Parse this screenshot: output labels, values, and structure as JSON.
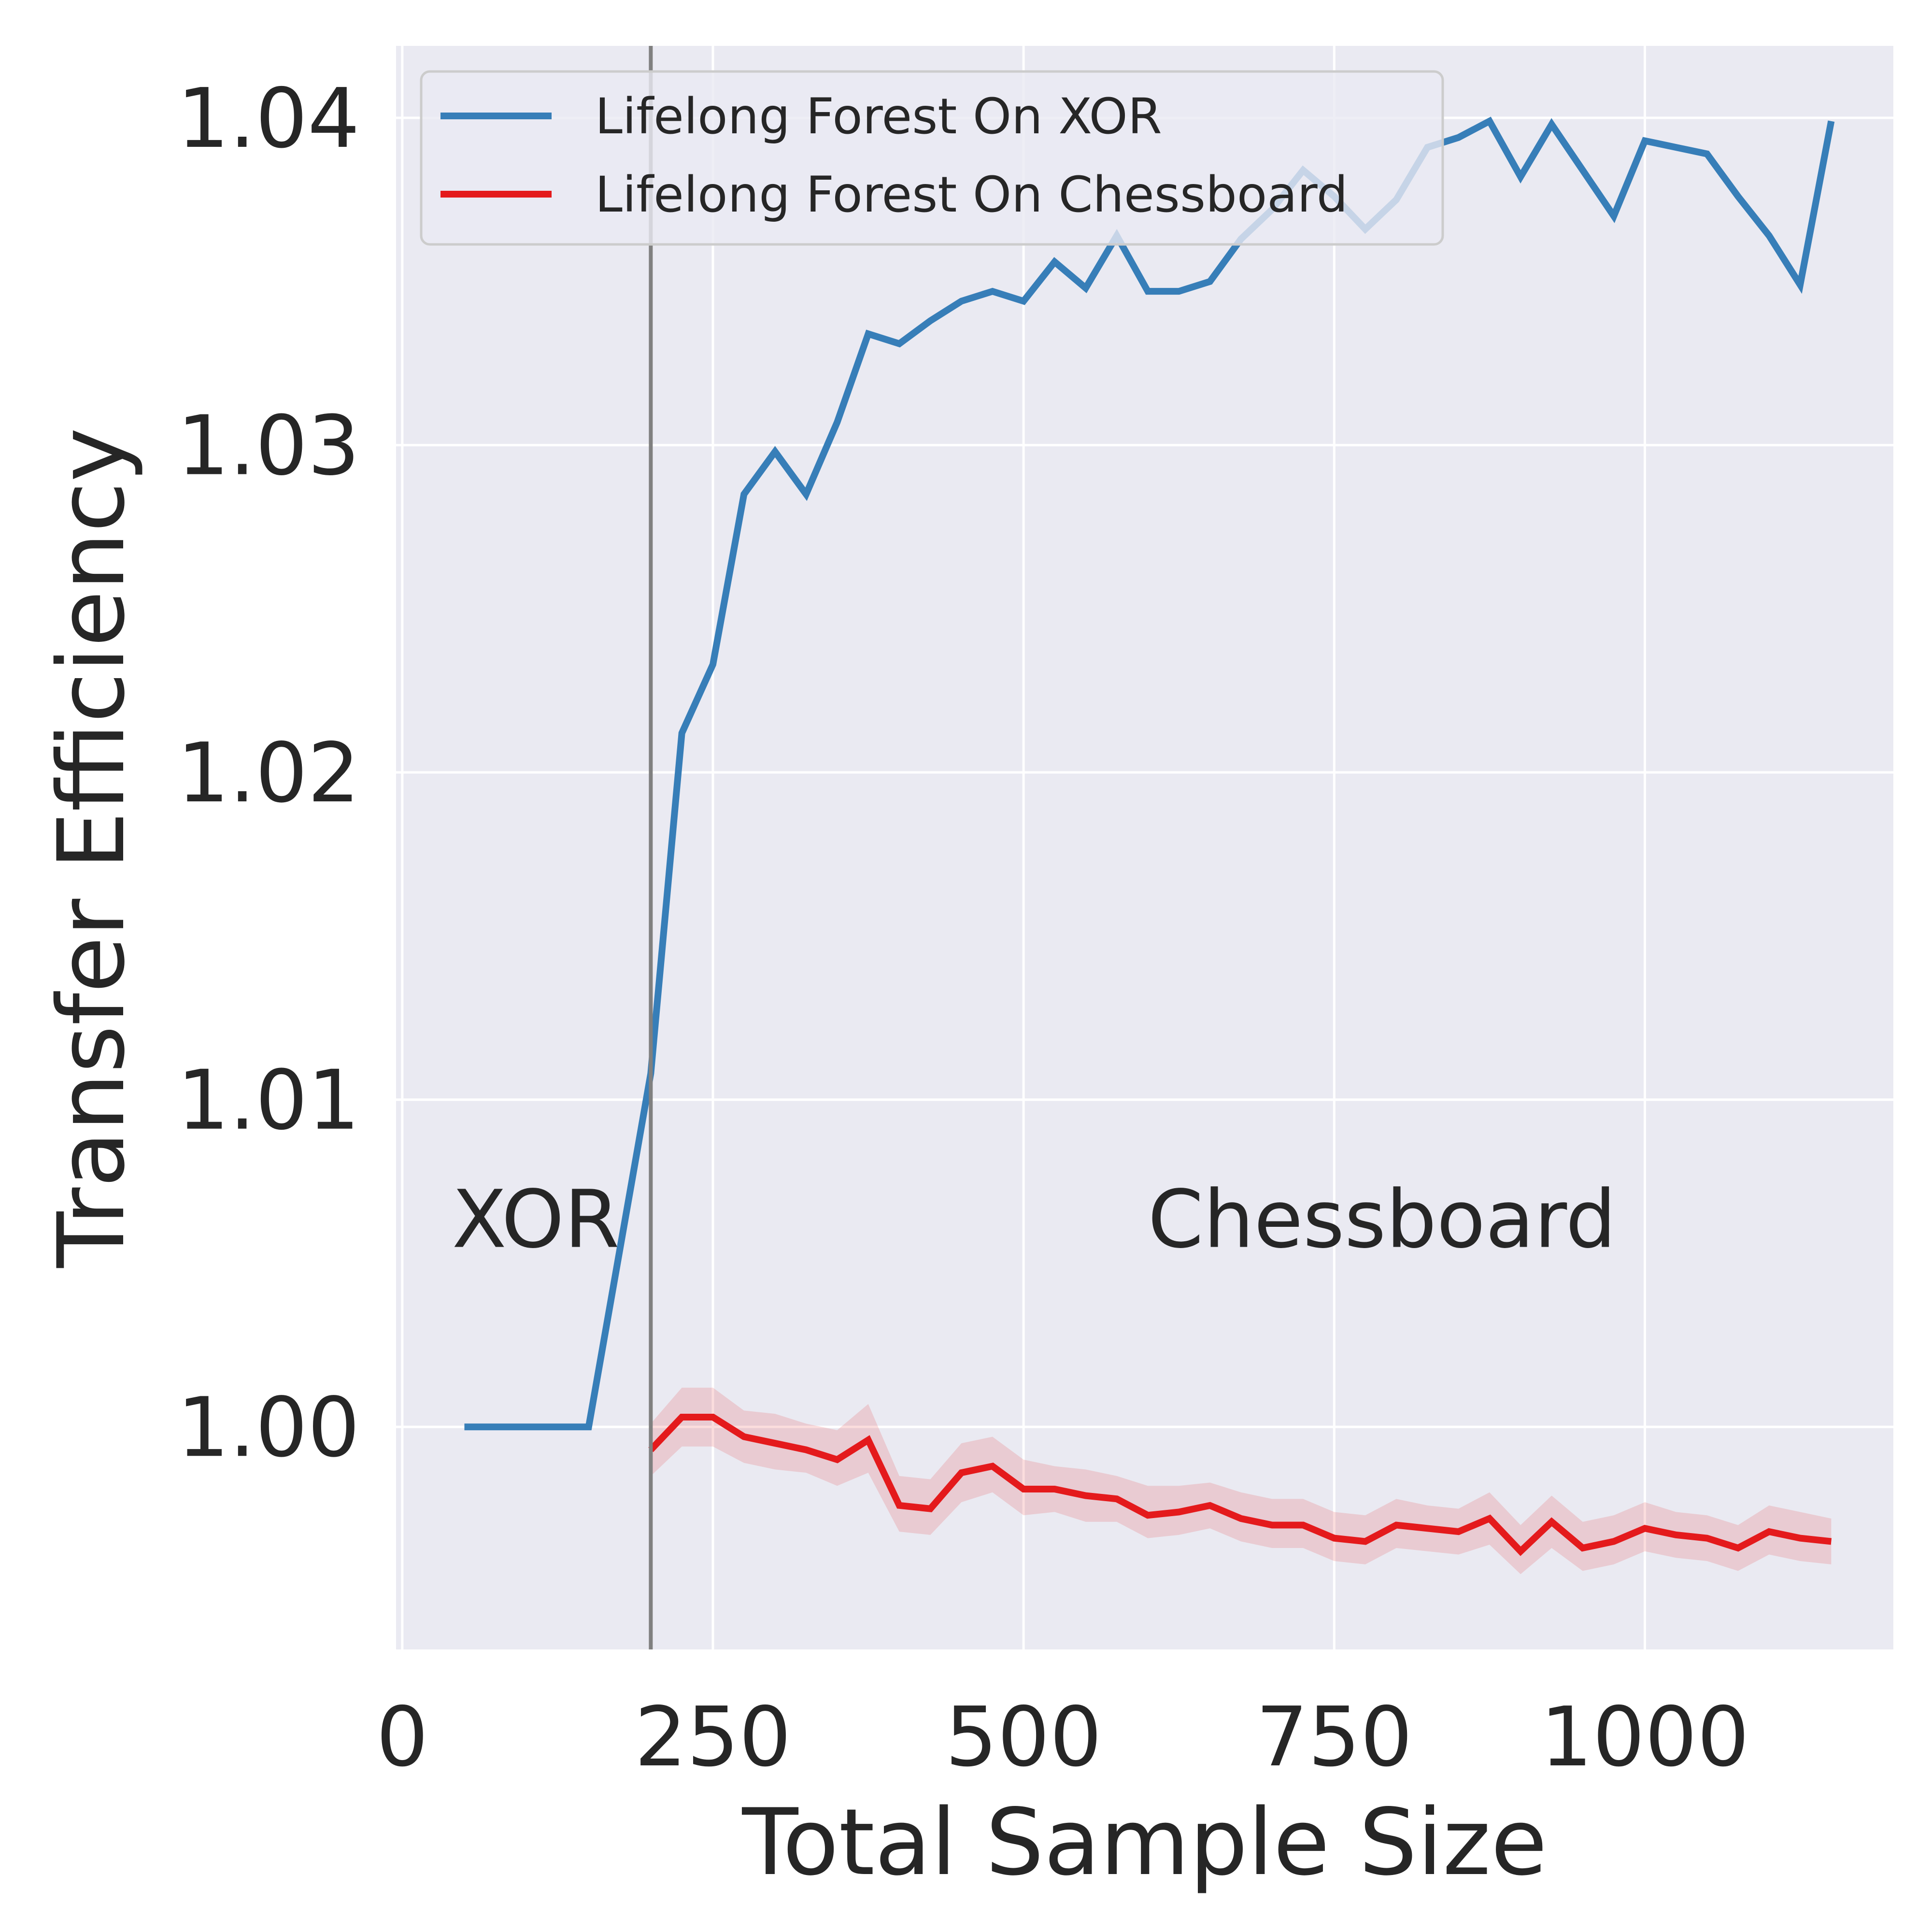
{
  "chart_data": {
    "type": "line",
    "xlabel": "Total Sample Size",
    "ylabel": "Transfer Efficiency",
    "xlim": [
      -5,
      1200
    ],
    "ylim": [
      0.9932,
      1.0422
    ],
    "xticks": [
      0,
      250,
      500,
      750,
      1000
    ],
    "xtick_labels": [
      "0",
      "250",
      "500",
      "750",
      "1000"
    ],
    "yticks": [
      1.0,
      1.01,
      1.02,
      1.03,
      1.04
    ],
    "ytick_labels": [
      "1.00",
      "1.01",
      "1.02",
      "1.03",
      "1.04"
    ],
    "grid": true,
    "legend_position": "top-left",
    "task_switch_x": 200,
    "annotations": [
      {
        "text": "XOR",
        "x": 40,
        "y": 1.0055
      },
      {
        "text": "Chessboard",
        "x": 600,
        "y": 1.0055
      }
    ],
    "series": [
      {
        "name": "Lifelong Forest  On XOR",
        "color": "#377eb8",
        "x": [
          50,
          75,
          100,
          125,
          150,
          175,
          200,
          225,
          250,
          275,
          300,
          325,
          350,
          375,
          400,
          425,
          450,
          475,
          500,
          525,
          550,
          575,
          600,
          625,
          650,
          675,
          700,
          725,
          750,
          775,
          800,
          825,
          850,
          875,
          900,
          925,
          950,
          975,
          1000,
          1025,
          1050,
          1075,
          1100,
          1125,
          1150
        ],
        "y": [
          1.0,
          1.0,
          1.0,
          1.0,
          1.0,
          1.0054,
          1.0108,
          1.0212,
          1.0233,
          1.0285,
          1.0298,
          1.0285,
          1.0307,
          1.0334,
          1.0331,
          1.0338,
          1.0344,
          1.0347,
          1.0344,
          1.0356,
          1.0348,
          1.0364,
          1.0347,
          1.0347,
          1.035,
          1.0363,
          1.0372,
          1.0384,
          1.0376,
          1.0366,
          1.0375,
          1.0391,
          1.0394,
          1.0399,
          1.0382,
          1.0398,
          1.0384,
          1.037,
          1.0393,
          1.0391,
          1.0389,
          1.0376,
          1.0364,
          1.0349,
          1.0399
        ]
      },
      {
        "name": "Lifelong Forest On Chessboard",
        "color": "#e41a1c",
        "x": [
          200,
          225,
          250,
          275,
          300,
          325,
          350,
          375,
          400,
          425,
          450,
          475,
          500,
          525,
          550,
          575,
          600,
          625,
          650,
          675,
          700,
          725,
          750,
          775,
          800,
          825,
          850,
          875,
          900,
          925,
          950,
          975,
          1000,
          1025,
          1050,
          1075,
          1100,
          1125,
          1150
        ],
        "y": [
          0.9993,
          1.0003,
          1.0003,
          0.9997,
          0.9995,
          0.9993,
          0.999,
          0.9996,
          0.9976,
          0.9975,
          0.9986,
          0.9988,
          0.9981,
          0.9981,
          0.9979,
          0.9978,
          0.9973,
          0.9974,
          0.9976,
          0.9972,
          0.997,
          0.997,
          0.9966,
          0.9965,
          0.997,
          0.9969,
          0.9968,
          0.9972,
          0.9962,
          0.9971,
          0.9963,
          0.9965,
          0.9969,
          0.9967,
          0.9966,
          0.9963,
          0.9968,
          0.9966,
          0.9965
        ],
        "lower": [
          0.9985,
          0.9994,
          0.9994,
          0.9989,
          0.9987,
          0.9986,
          0.9982,
          0.9986,
          0.9968,
          0.9967,
          0.9977,
          0.998,
          0.9973,
          0.9974,
          0.9971,
          0.9971,
          0.9966,
          0.9967,
          0.9969,
          0.9965,
          0.9963,
          0.9963,
          0.9959,
          0.9958,
          0.9963,
          0.9962,
          0.9961,
          0.9964,
          0.9955,
          0.9963,
          0.9956,
          0.9958,
          0.9962,
          0.996,
          0.9959,
          0.9956,
          0.9961,
          0.9959,
          0.9958
        ],
        "upper": [
          1.0001,
          1.0012,
          1.0012,
          1.0005,
          1.0004,
          1.0001,
          0.9999,
          1.0007,
          0.9985,
          0.9984,
          0.9995,
          0.9997,
          0.999,
          0.9988,
          0.9987,
          0.9985,
          0.9982,
          0.9982,
          0.9983,
          0.998,
          0.9978,
          0.9978,
          0.9974,
          0.9973,
          0.9978,
          0.9976,
          0.9975,
          0.998,
          0.997,
          0.9979,
          0.9971,
          0.9973,
          0.9977,
          0.9974,
          0.9973,
          0.997,
          0.9976,
          0.9974,
          0.9972
        ]
      }
    ]
  }
}
